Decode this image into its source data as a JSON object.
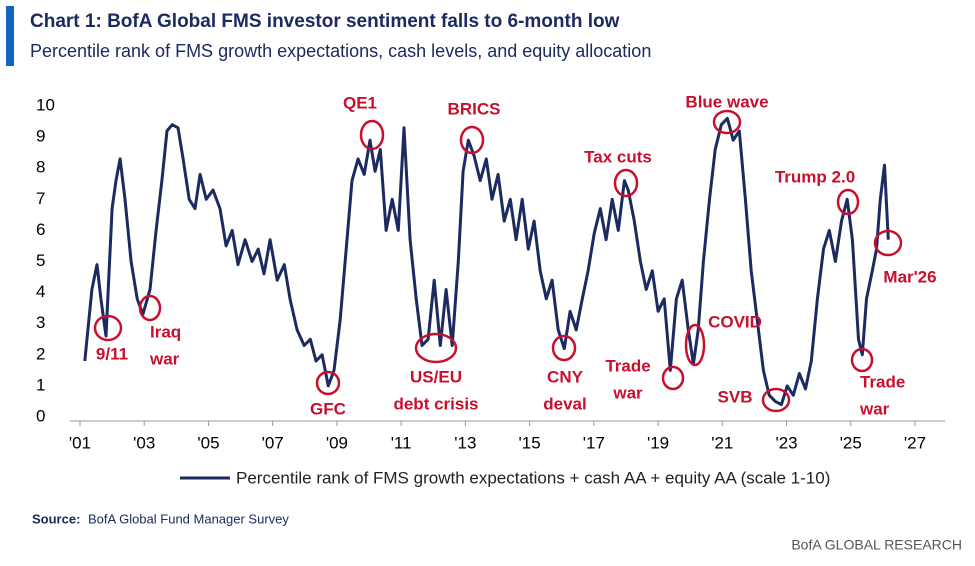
{
  "chart_data": {
    "type": "line",
    "title": "Chart 1: BofA Global FMS investor sentiment falls to 6-month low",
    "subtitle": "Percentile rank of FMS growth expectations, cash levels, and equity allocation",
    "x": [
      2001.15,
      2001.37,
      2001.53,
      2001.65,
      2001.81,
      2002.0,
      2002.12,
      2002.25,
      2002.4,
      2002.59,
      2002.78,
      2002.96,
      2003.18,
      2003.37,
      2003.55,
      2003.71,
      2003.87,
      2004.05,
      2004.21,
      2004.4,
      2004.58,
      2004.74,
      2004.93,
      2005.14,
      2005.36,
      2005.55,
      2005.74,
      2005.92,
      2006.14,
      2006.36,
      2006.55,
      2006.73,
      2006.92,
      2007.14,
      2007.36,
      2007.54,
      2007.76,
      2007.98,
      2008.17,
      2008.35,
      2008.54,
      2008.73,
      2008.91,
      2009.1,
      2009.29,
      2009.47,
      2009.66,
      2009.85,
      2010.03,
      2010.19,
      2010.35,
      2010.53,
      2010.72,
      2010.91,
      2011.09,
      2011.28,
      2011.47,
      2011.65,
      2011.84,
      2012.03,
      2012.22,
      2012.4,
      2012.59,
      2012.78,
      2012.93,
      2013.09,
      2013.27,
      2013.46,
      2013.65,
      2013.83,
      2014.02,
      2014.21,
      2014.4,
      2014.58,
      2014.77,
      2014.96,
      2015.14,
      2015.33,
      2015.52,
      2015.7,
      2015.89,
      2016.08,
      2016.26,
      2016.45,
      2016.64,
      2016.82,
      2017.01,
      2017.2,
      2017.38,
      2017.57,
      2017.76,
      2017.95,
      2018.07,
      2018.26,
      2018.45,
      2018.63,
      2018.82,
      2019.0,
      2019.19,
      2019.38,
      2019.57,
      2019.75,
      2019.94,
      2020.1,
      2020.25,
      2020.41,
      2020.6,
      2020.78,
      2020.97,
      2021.16,
      2021.34,
      2021.53,
      2021.72,
      2021.9,
      2022.09,
      2022.28,
      2022.46,
      2022.65,
      2022.84,
      2023.02,
      2023.21,
      2023.4,
      2023.59,
      2023.77,
      2023.96,
      2024.15,
      2024.33,
      2024.52,
      2024.71,
      2024.89,
      2025.05,
      2025.24,
      2025.36,
      2025.49,
      2025.67,
      2025.8,
      2025.92,
      2026.05,
      2026.17
    ],
    "series": [
      {
        "name": "Percentile rank of FMS growth expectations + cash AA + equity AA (scale 1-10)",
        "color": "#1c2a60",
        "values": [
          1.8,
          4.1,
          4.9,
          3.8,
          2.6,
          6.7,
          7.6,
          8.3,
          7.0,
          5.0,
          3.8,
          3.3,
          4.1,
          6.0,
          7.6,
          9.2,
          9.4,
          9.3,
          8.3,
          7.0,
          6.7,
          7.8,
          7.0,
          7.3,
          6.7,
          5.5,
          6.0,
          4.9,
          5.7,
          5.0,
          5.4,
          4.6,
          5.7,
          4.4,
          4.9,
          3.8,
          2.8,
          2.3,
          2.5,
          1.8,
          2.0,
          1.0,
          1.5,
          3.1,
          5.4,
          7.6,
          8.3,
          7.8,
          8.9,
          7.9,
          8.6,
          6.0,
          7.0,
          6.0,
          9.3,
          5.7,
          3.8,
          2.3,
          2.5,
          4.4,
          2.3,
          4.1,
          2.3,
          5.0,
          7.9,
          8.9,
          8.4,
          7.6,
          8.3,
          7.0,
          7.8,
          6.3,
          7.0,
          5.7,
          7.0,
          5.4,
          6.3,
          4.7,
          3.8,
          4.4,
          2.8,
          2.2,
          3.4,
          2.8,
          3.8,
          4.7,
          5.9,
          6.7,
          5.7,
          7.0,
          6.0,
          7.6,
          7.3,
          6.3,
          5.0,
          4.1,
          4.7,
          3.4,
          3.8,
          1.5,
          3.8,
          4.4,
          2.8,
          1.7,
          2.8,
          5.0,
          7.0,
          8.6,
          9.4,
          9.6,
          8.9,
          9.2,
          7.0,
          4.7,
          3.1,
          1.5,
          0.7,
          0.5,
          0.4,
          1.0,
          0.7,
          1.4,
          0.9,
          1.8,
          3.8,
          5.4,
          6.0,
          5.0,
          6.3,
          7.0,
          5.7,
          2.5,
          2.0,
          3.8,
          4.7,
          5.4,
          7.0,
          8.1,
          5.7
        ]
      }
    ],
    "xlim": [
      2001,
      2027
    ],
    "xticks": [
      {
        "value": 2001,
        "label": "'01"
      },
      {
        "value": 2003,
        "label": "'03"
      },
      {
        "value": 2005,
        "label": "'05"
      },
      {
        "value": 2007,
        "label": "'07"
      },
      {
        "value": 2009,
        "label": "'09"
      },
      {
        "value": 2011,
        "label": "'11"
      },
      {
        "value": 2013,
        "label": "'13"
      },
      {
        "value": 2015,
        "label": "'15"
      },
      {
        "value": 2017,
        "label": "'17"
      },
      {
        "value": 2019,
        "label": "'19"
      },
      {
        "value": 2021,
        "label": "'21"
      },
      {
        "value": 2023,
        "label": "'23"
      },
      {
        "value": 2025,
        "label": "'25"
      },
      {
        "value": 2027,
        "label": "'27"
      }
    ],
    "ylim": [
      0,
      10
    ],
    "yticks": [
      0,
      1,
      2,
      3,
      4,
      5,
      6,
      7,
      8,
      9,
      10
    ],
    "annotation_color": "#c8102e",
    "annotations": [
      [
        "9/11"
      ],
      [
        "Iraq",
        "war"
      ],
      [
        "GFC"
      ],
      [
        "QE1"
      ],
      [
        "US/EU",
        "debt crisis"
      ],
      [
        "BRICS"
      ],
      [
        "CNY",
        "deval"
      ],
      [
        "Tax cuts"
      ],
      [
        "Trade",
        "war"
      ],
      [
        "COVID"
      ],
      [
        "Blue wave"
      ],
      [
        "SVB"
      ],
      [
        "Trump 2.0"
      ],
      [
        "Mar'26"
      ],
      [
        "Trade",
        "war"
      ]
    ],
    "source_label": "Source:",
    "source": "BofA Global Fund Manager Survey",
    "brand": "BofA GLOBAL RESEARCH"
  }
}
